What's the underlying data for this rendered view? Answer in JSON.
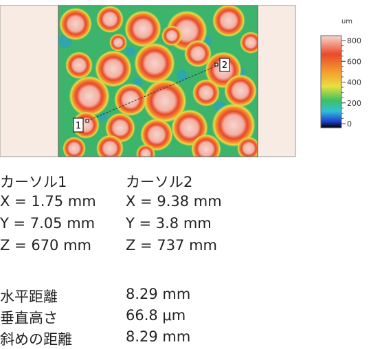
{
  "image": {
    "cursor_labels": [
      "1",
      "2"
    ],
    "colorbar": {
      "unit": "um",
      "lim": [
        0,
        800
      ],
      "ticks": [
        800,
        600,
        400,
        200,
        0
      ]
    }
  },
  "cursors": [
    {
      "title": "カーソル1",
      "x": "X = 1.75 mm",
      "y": "Y = 7.05 mm",
      "z": "Z = 670 mm"
    },
    {
      "title": "カーソル2",
      "x": "X = 9.38 mm",
      "y": "Y = 3.8 mm",
      "z": "Z = 737 mm"
    }
  ],
  "measurements": [
    {
      "label": "水平距離",
      "value": "8.29 mm"
    },
    {
      "label": "垂直高さ",
      "value": "66.8 μm"
    },
    {
      "label": "斜めの距離",
      "value": "8.29 mm"
    }
  ]
}
